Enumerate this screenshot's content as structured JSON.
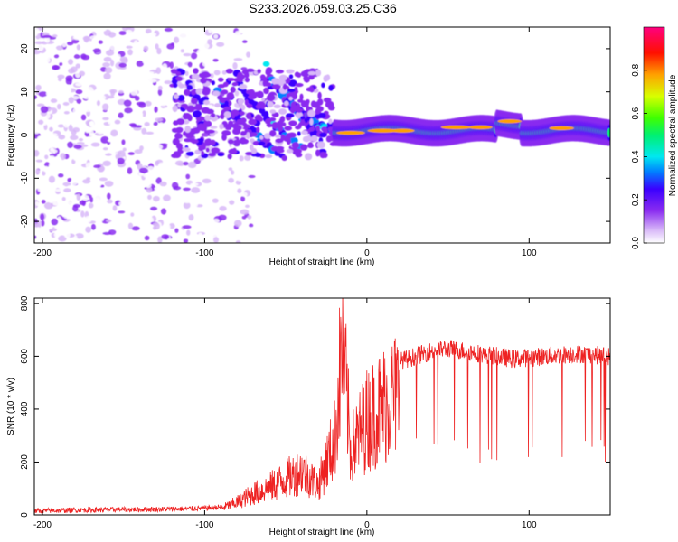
{
  "title": "S233.2026.059.03.25.C36",
  "colors": {
    "snr_line": "#ee2222",
    "colormap": [
      "#ffffff",
      "#d8b8f8",
      "#a060f0",
      "#6a00e8",
      "#1f00ff",
      "#00c8ff",
      "#00e878",
      "#40ff00",
      "#ffe000",
      "#ff6a00",
      "#ff0000",
      "#ff0078"
    ]
  },
  "chart_data": [
    {
      "type": "heatmap",
      "title": "S233.2026.059.03.25.C36",
      "xlabel": "Height of straight line (km)",
      "ylabel": "Frequency (Hz)",
      "xlim": [
        -205,
        150
      ],
      "ylim": [
        -25,
        25
      ],
      "xticks": [
        -200,
        -100,
        0,
        100
      ],
      "yticks": [
        -20,
        -10,
        0,
        10,
        20
      ],
      "colorbar": {
        "label": "Normalized spectral amplitude",
        "range": [
          0.0,
          1.0
        ],
        "ticks": [
          "0.0",
          "0.2",
          "0.4",
          "0.6",
          "0.8"
        ],
        "tick_values": [
          0.0,
          0.2,
          0.4,
          0.6,
          0.8
        ]
      },
      "description_segments": [
        {
          "x_range": [
            -205,
            -90
          ],
          "freq_range": [
            -25,
            25
          ],
          "amplitude": 0.1,
          "pattern": "scattered noise"
        },
        {
          "x_range": [
            -90,
            -20
          ],
          "freq_range": [
            -5,
            15
          ],
          "amplitude": 0.3,
          "pattern": "curved arcs converging to 0 Hz"
        },
        {
          "x_range": [
            -20,
            150
          ],
          "freq_center": 1,
          "freq_halfwidth": 1.5,
          "amplitude": 0.8,
          "pattern": "narrow band near 0-3 Hz"
        }
      ]
    },
    {
      "type": "line",
      "xlabel": "Height of straight line (km)",
      "ylabel": "SNR (10 * v/v)",
      "xlim": [
        -205,
        150
      ],
      "ylim": [
        0,
        820
      ],
      "xticks": [
        -200,
        -100,
        0,
        100
      ],
      "yticks": [
        0,
        200,
        400,
        600,
        800
      ],
      "series": [
        {
          "name": "SNR",
          "x": [
            -205,
            -180,
            -150,
            -120,
            -100,
            -90,
            -80,
            -70,
            -60,
            -50,
            -40,
            -30,
            -20,
            -15,
            -10,
            0,
            10,
            20,
            30,
            40,
            50,
            70,
            90,
            110,
            130,
            150
          ],
          "values": [
            15,
            18,
            20,
            22,
            25,
            30,
            60,
            100,
            130,
            170,
            210,
            140,
            350,
            820,
            300,
            450,
            520,
            580,
            600,
            620,
            630,
            610,
            590,
            600,
            610,
            600
          ]
        }
      ]
    }
  ]
}
